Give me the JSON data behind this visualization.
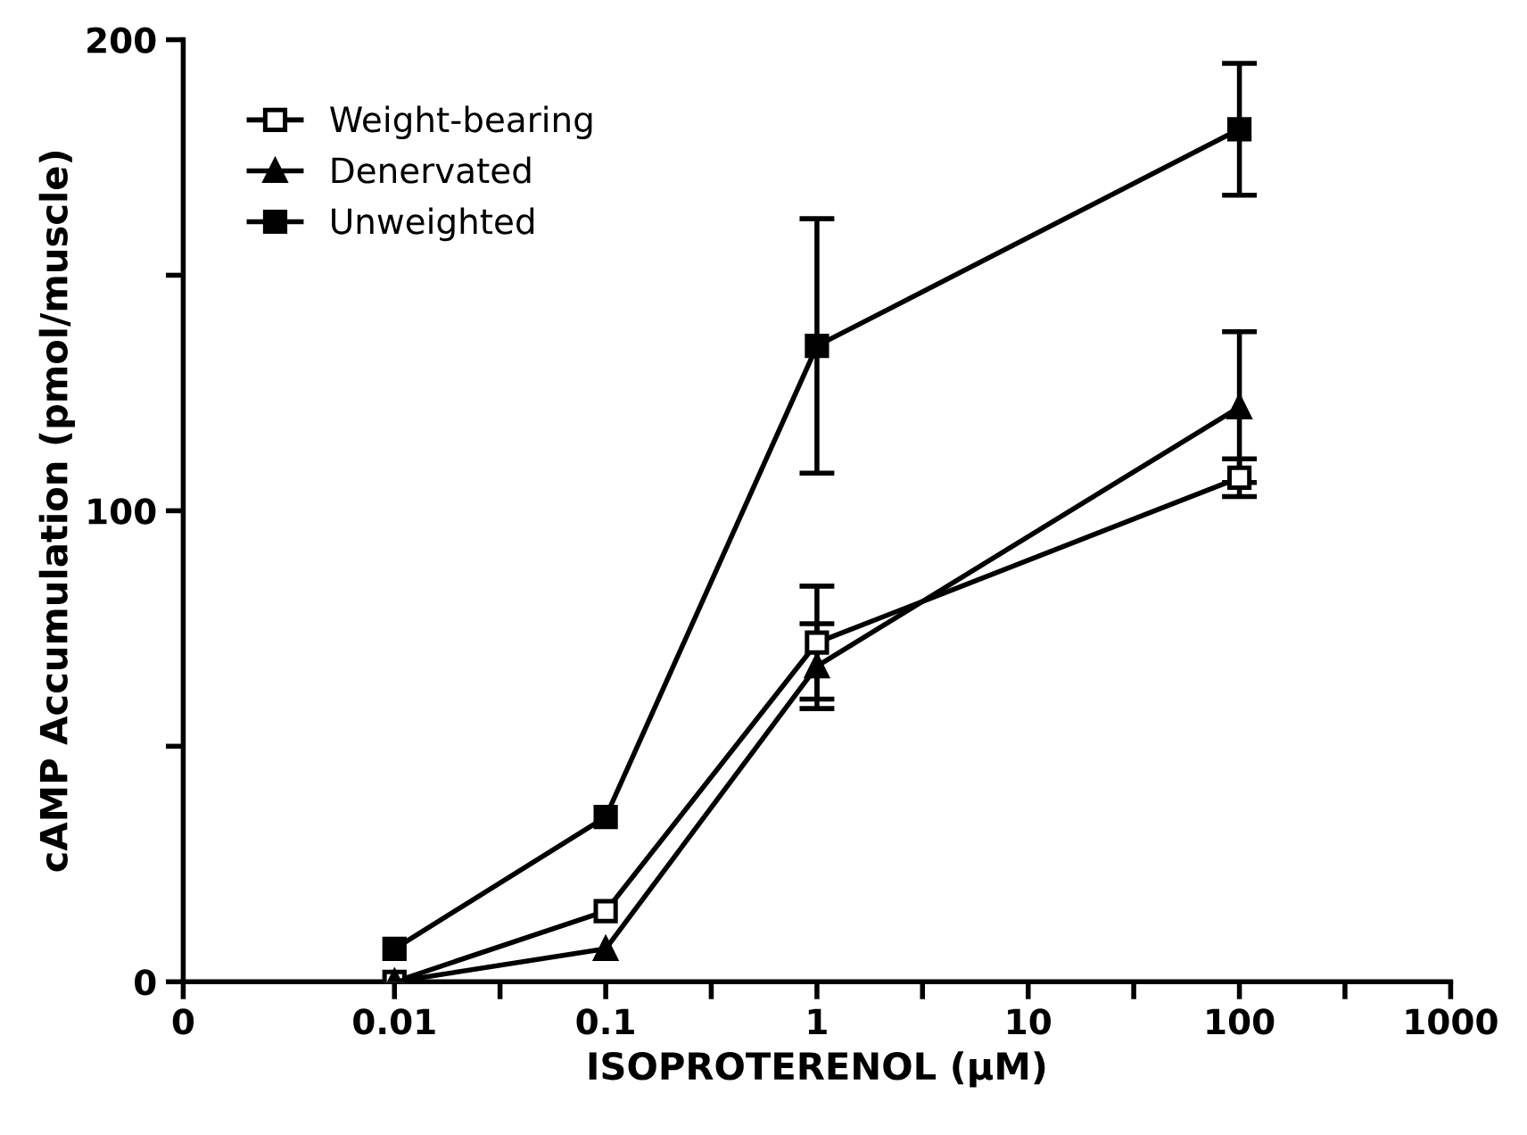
{
  "chart_data": {
    "type": "line",
    "xlabel": "ISOPROTERENOL (µM)",
    "ylabel": "cAMP Accumulation (pmol/muscle)",
    "log": "x",
    "xlim": [
      0.001,
      1000
    ],
    "xticks": [
      {
        "value": 0.001,
        "label": "0"
      },
      0.01,
      {
        "value": 0.0316,
        "label": null
      },
      0.1,
      {
        "value": 0.316,
        "label": null
      },
      1,
      {
        "value": 3.16,
        "label": null
      },
      10,
      {
        "value": 31.6,
        "label": null
      },
      100,
      {
        "value": 316,
        "label": null
      },
      1000
    ],
    "ylim": [
      0,
      200
    ],
    "yticks": [
      0,
      {
        "value": 50,
        "label": null
      },
      100,
      {
        "value": 150,
        "label": null
      },
      200
    ],
    "grid": false,
    "legend": "top left",
    "line_style": "solid",
    "x": [
      0.01,
      0.1,
      1,
      100
    ],
    "series": [
      {
        "name": "Weight-bearing",
        "color": "#000000",
        "marker": "square_open",
        "values": [
          0,
          15,
          72,
          107
        ],
        "errors": [
          null,
          null,
          12,
          4
        ]
      },
      {
        "name": "Denervated",
        "color": "#000000",
        "marker": "triangle",
        "values": [
          0,
          7,
          67,
          122
        ],
        "errors": [
          null,
          null,
          9,
          16
        ]
      },
      {
        "name": "Unweighted",
        "color": "#000000",
        "marker": "square",
        "values": [
          7,
          35,
          135,
          181
        ],
        "errors": [
          null,
          null,
          27,
          14
        ]
      }
    ]
  }
}
